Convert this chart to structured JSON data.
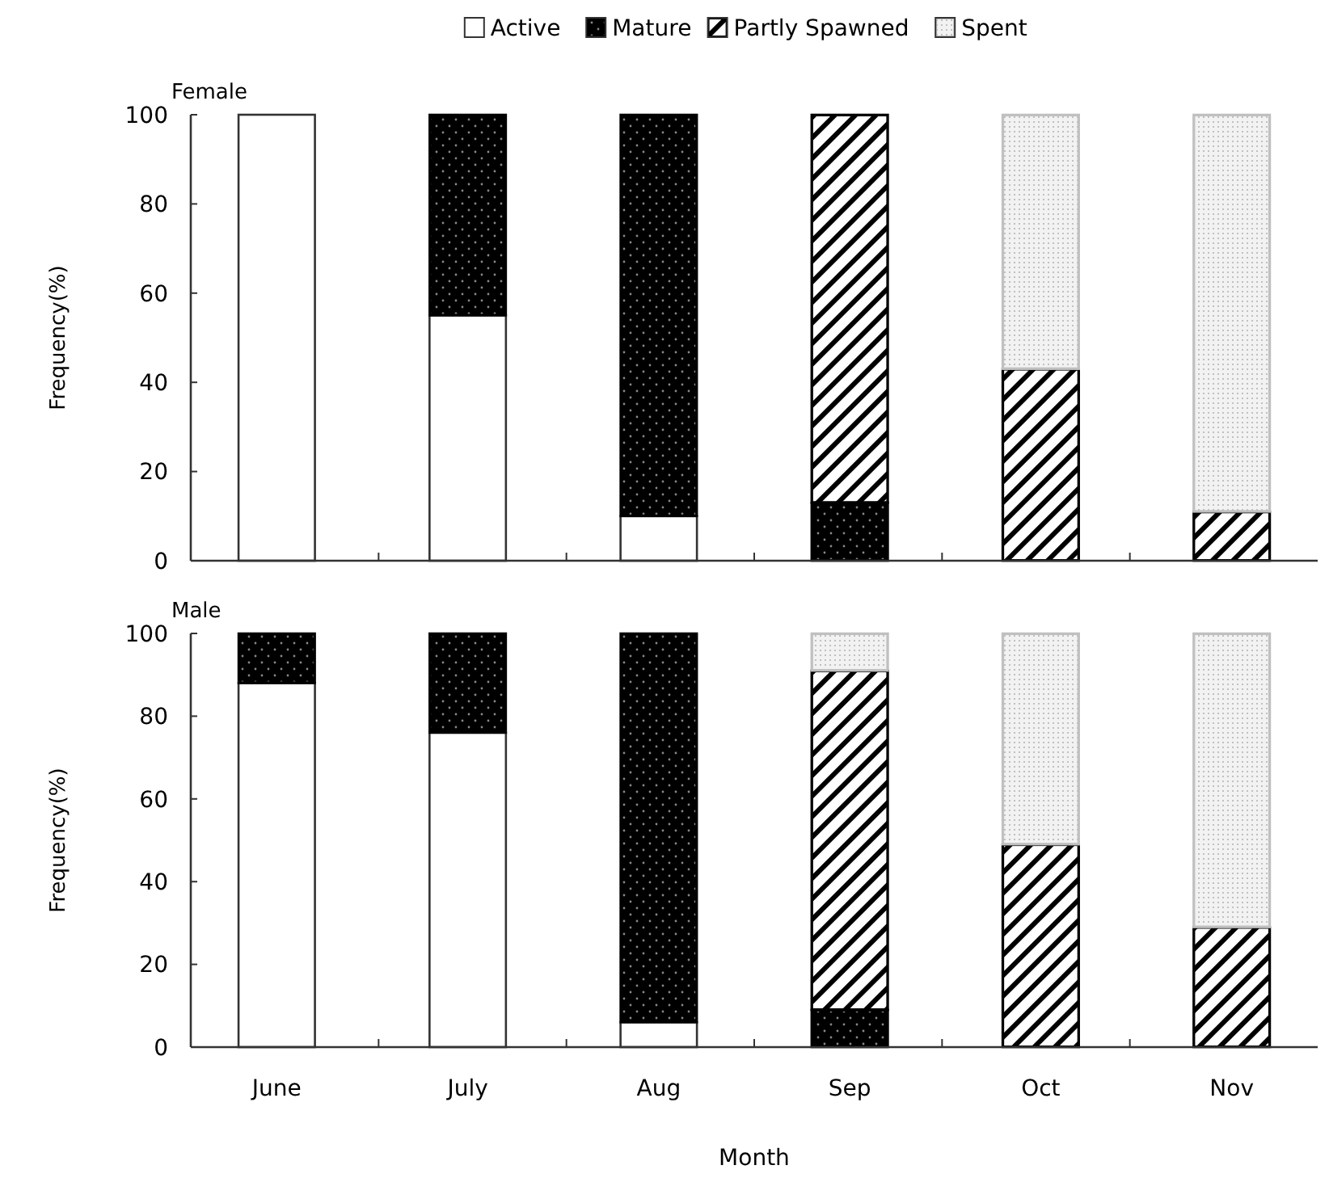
{
  "chart_data": [
    {
      "type": "bar",
      "title": "Female",
      "categories": [
        null,
        null,
        null,
        null,
        null,
        null
      ],
      "stacked": true,
      "ylabel": "Frequency(%)",
      "ylim": [
        0,
        100
      ],
      "yticks": [
        0,
        20,
        40,
        60,
        80,
        100
      ],
      "series": [
        {
          "color": "#ffffff",
          "values": [
            100,
            55,
            10,
            0,
            0,
            0
          ]
        },
        {
          "color": "#000000",
          "values": [
            0,
            45,
            90,
            13,
            0,
            0
          ]
        },
        {
          "color": "#000000",
          "values": [
            0,
            0,
            0,
            87,
            43,
            11
          ]
        },
        {
          "color": "#c0c0c0",
          "values": [
            0,
            0,
            0,
            0,
            57,
            89
          ]
        }
      ]
    },
    {
      "type": "bar",
      "title": "Male",
      "categories": [
        "June",
        "July",
        "Aug",
        "Sep",
        "Oct",
        "Nov"
      ],
      "stacked": true,
      "xlabel": "Month",
      "ylabel": "Frequency(%)",
      "ylim": [
        0,
        100
      ],
      "yticks": [
        0,
        20,
        40,
        60,
        80,
        100
      ],
      "legend": "top",
      "series": [
        {
          "name": "Active",
          "color": "#ffffff",
          "values": [
            88,
            76,
            6,
            0,
            0,
            0
          ]
        },
        {
          "name": "Mature",
          "color": "#000000",
          "values": [
            12,
            24,
            94,
            9,
            0,
            0
          ]
        },
        {
          "name": "Partly Spawned",
          "color": "#000000",
          "values": [
            0,
            0,
            0,
            82,
            49,
            29
          ]
        },
        {
          "name": "Spent",
          "color": "#c0c0c0",
          "values": [
            0,
            0,
            0,
            9,
            51,
            71
          ]
        }
      ]
    }
  ]
}
